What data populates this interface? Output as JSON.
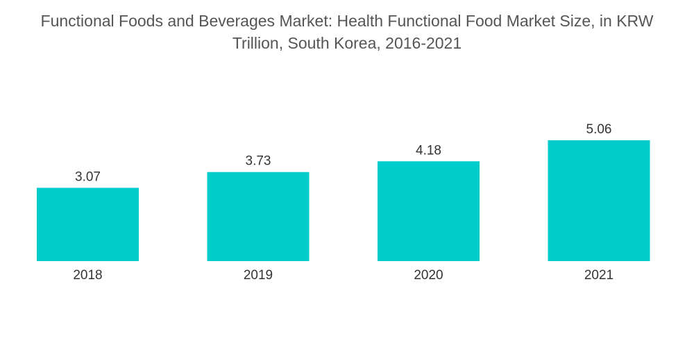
{
  "chart_data": {
    "type": "bar",
    "title": "Functional Foods and Beverages Market: Health Functional Food Market Size, in KRW Trillion, South Korea, 2016-2021",
    "categories": [
      "2018",
      "2019",
      "2020",
      "2021"
    ],
    "values": [
      3.07,
      3.73,
      4.18,
      5.06
    ],
    "value_labels": [
      "3.07",
      "3.73",
      "4.18",
      "5.06"
    ],
    "xlabel": "",
    "ylabel": "",
    "ylim": [
      0,
      5.06
    ],
    "grid": false,
    "legend": "none",
    "bar_color": "#00CCCC"
  }
}
